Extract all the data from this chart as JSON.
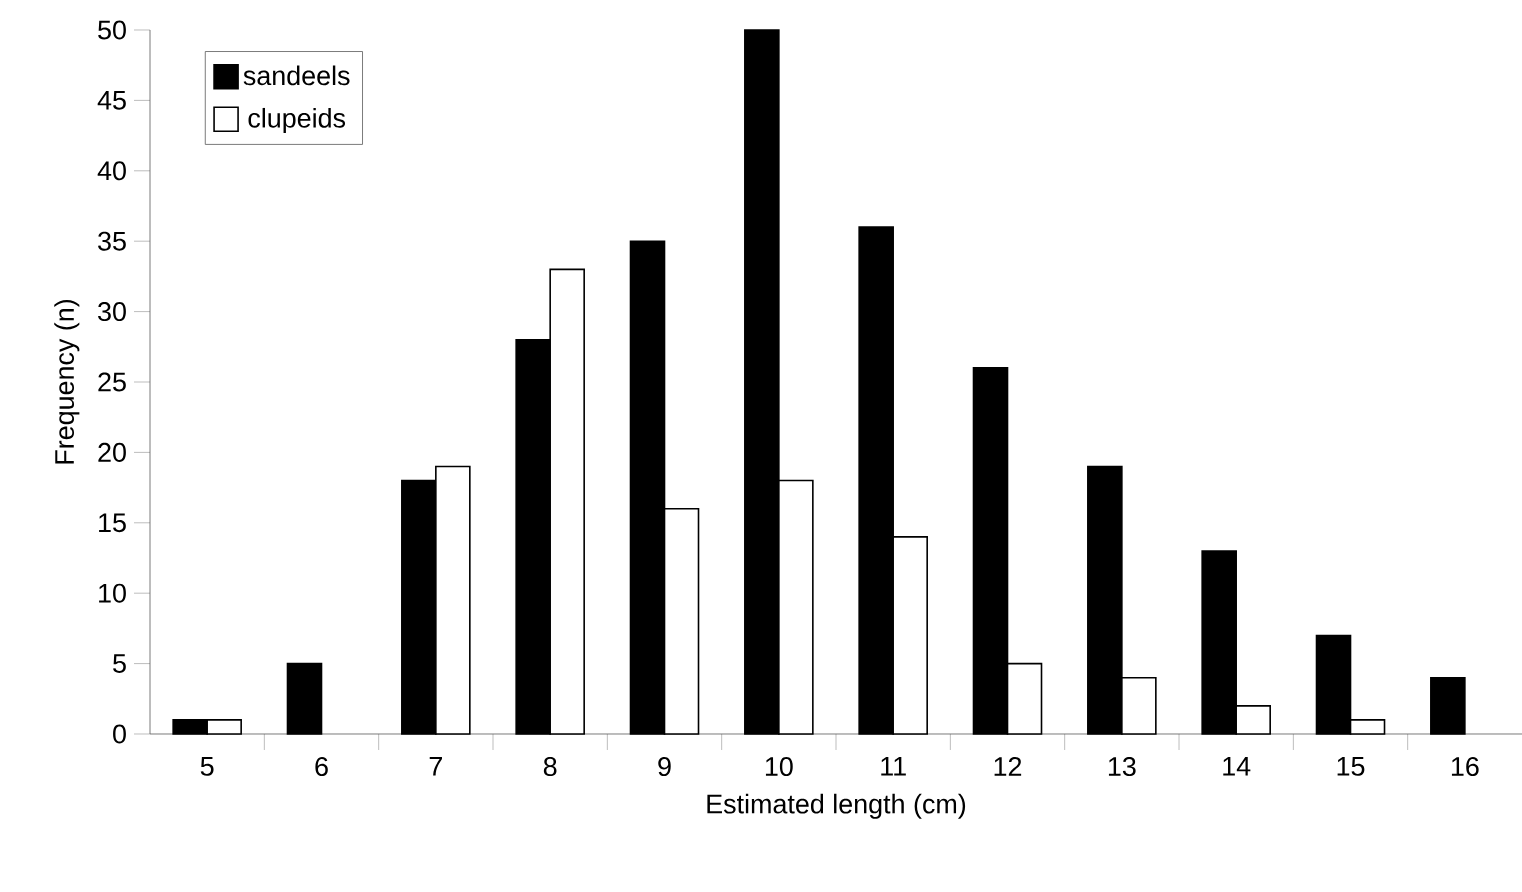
{
  "chart_data": {
    "type": "bar",
    "xlabel": "Estimated length (cm)",
    "ylabel": "Frequency (n)",
    "categories": [
      "5",
      "6",
      "7",
      "8",
      "9",
      "10",
      "11",
      "12",
      "13",
      "14",
      "15",
      "16"
    ],
    "series": [
      {
        "name": "sandeels",
        "color": "#000000",
        "values": [
          1,
          5,
          18,
          28,
          35,
          50,
          36,
          26,
          19,
          13,
          7,
          4
        ]
      },
      {
        "name": "clupeids",
        "color": "#ffffff",
        "values": [
          1,
          null,
          19,
          33,
          16,
          18,
          14,
          5,
          4,
          2,
          1,
          null
        ]
      }
    ],
    "ylim": [
      0,
      50
    ],
    "yticks": [
      0,
      5,
      10,
      15,
      20,
      25,
      30,
      35,
      40,
      45,
      50
    ],
    "grid": false,
    "legend": "top left"
  }
}
